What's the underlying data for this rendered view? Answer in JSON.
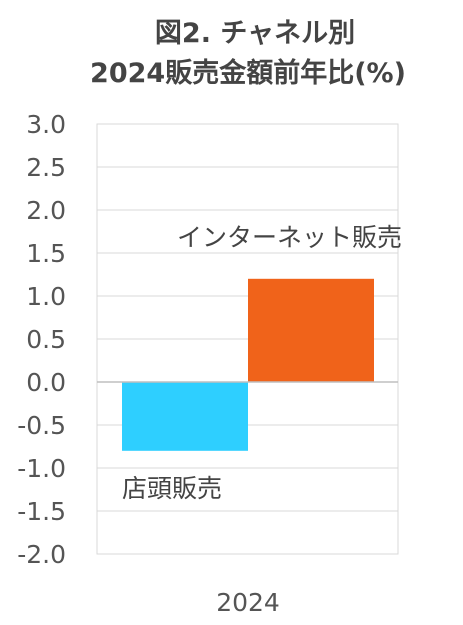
{
  "chart_data": {
    "type": "bar",
    "title_line1": "図2. チャネル別",
    "title_line2": "2024販売金額前年比(%)",
    "categories": [
      "2024"
    ],
    "series": [
      {
        "name": "店頭販売",
        "values": [
          -0.8
        ],
        "color": "#2ecfff"
      },
      {
        "name": "インターネット販売",
        "values": [
          1.2
        ],
        "color": "#f0631a"
      }
    ],
    "ylim": [
      -2.0,
      3.0
    ],
    "yticks": [
      "3.0",
      "2.5",
      "2.0",
      "1.5",
      "1.0",
      "0.5",
      "0.0",
      "-0.5",
      "-1.0",
      "-1.5",
      "-2.0"
    ],
    "grid": true,
    "legend": "labels next to bars"
  }
}
